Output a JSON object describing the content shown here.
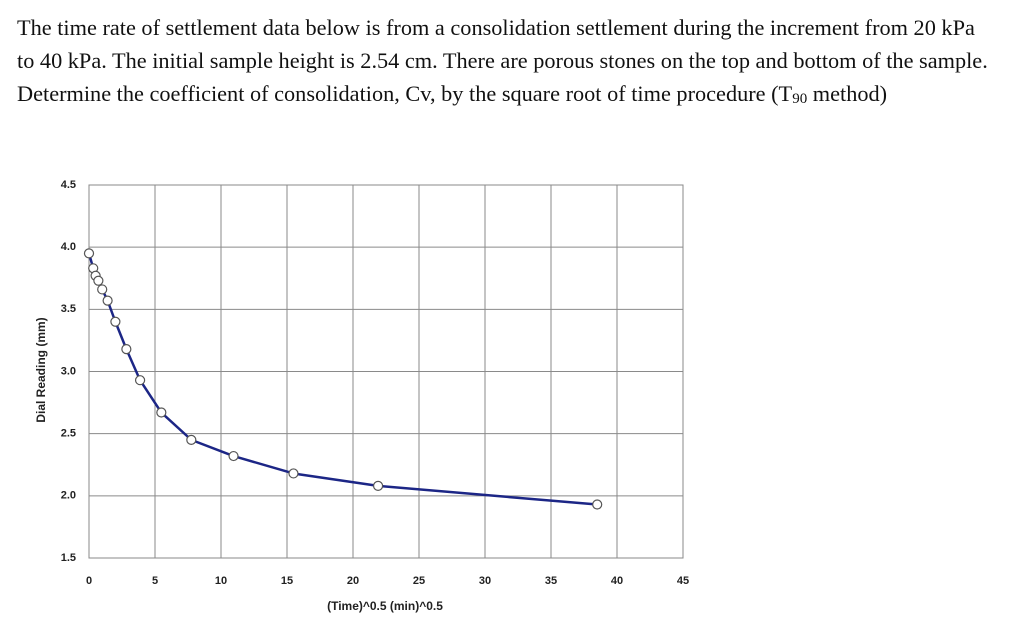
{
  "question": {
    "text": "The time rate of settlement data below is from a consolidation settlement during the increment from 20 kPa to 40 kPa. The initial sample height is 2.54 cm. There are porous stones on the top and bottom of the sample.  Determine the coefficient of consolidation, Cv, by the square root of time procedure (T",
    "subscript": "90",
    "text_after": " method)"
  },
  "chart_data": {
    "type": "line",
    "xlabel": "(Time)^0.5  (min)^0.5",
    "ylabel": "Dial Reading (mm)",
    "x": [
      0,
      0.32,
      0.5,
      0.71,
      1.0,
      1.41,
      2.0,
      2.83,
      3.87,
      5.48,
      7.75,
      10.95,
      15.49,
      21.9,
      38.5
    ],
    "series": [
      {
        "name": "Dial Reading",
        "color": "#1c2686",
        "values": [
          3.95,
          3.83,
          3.77,
          3.73,
          3.66,
          3.57,
          3.4,
          3.18,
          2.93,
          2.67,
          2.45,
          2.32,
          2.18,
          2.08,
          1.93
        ]
      }
    ],
    "xlim": [
      0,
      45
    ],
    "xticks": [
      0,
      5,
      10,
      15,
      20,
      25,
      30,
      35,
      40,
      45
    ],
    "ylim": [
      1.5,
      4.5
    ],
    "yticks": [
      {
        "value": 1.5,
        "label": "1.5"
      },
      {
        "value": 2,
        "label": "2.0"
      },
      {
        "value": 2.5,
        "label": "2.5"
      },
      {
        "value": 3,
        "label": "3.0"
      },
      {
        "value": 3.5,
        "label": "3.5"
      },
      {
        "value": 4,
        "label": "4.0"
      },
      {
        "value": 4.5,
        "label": "4.5"
      }
    ],
    "grid": true
  }
}
